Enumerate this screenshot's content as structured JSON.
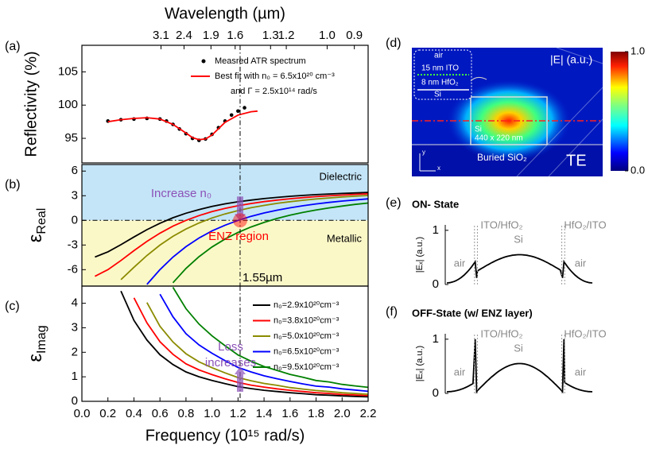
{
  "chart_data": [
    {
      "type": "line",
      "label": "(a)",
      "ylabel": "Reflectivity (%)",
      "x2label": "Wavelength (µm)",
      "xlim": [
        0,
        2.2
      ],
      "ylim": [
        91.3,
        109
      ],
      "yticks": [
        95,
        100,
        105
      ],
      "x2ticks": [
        {
          "value": 0.608,
          "label": "3.1"
        },
        {
          "value": 0.785,
          "label": "2.4"
        },
        {
          "value": 0.992,
          "label": "1.9"
        },
        {
          "value": 1.178,
          "label": "1.6"
        },
        {
          "value": 1.45,
          "label": "1.3"
        },
        {
          "value": 1.571,
          "label": "1.2"
        },
        {
          "value": 1.885,
          "label": "1.0"
        },
        {
          "value": 2.094,
          "label": "0.9"
        }
      ],
      "series": [
        {
          "name": "Measred ATR spectrum",
          "color": "#000000",
          "marker": "dot",
          "x": [
            0.2,
            0.3,
            0.4,
            0.5,
            0.6,
            0.65,
            0.7,
            0.75,
            0.8,
            0.85,
            0.9,
            0.95,
            1.0,
            1.05,
            1.1,
            1.15,
            1.2,
            1.25
          ],
          "values": [
            97.6,
            97.8,
            97.9,
            98.0,
            97.9,
            97.6,
            97.1,
            96.4,
            95.7,
            95.0,
            94.7,
            94.9,
            95.6,
            96.6,
            97.6,
            98.5,
            99.1,
            99.6
          ]
        },
        {
          "name": "Best fit with n₀ = 6.5x10²⁰ cm⁻³",
          "color": "#ff0000",
          "x": [
            0.2,
            0.3,
            0.4,
            0.5,
            0.6,
            0.7,
            0.8,
            0.85,
            0.9,
            0.95,
            1.0,
            1.1,
            1.2,
            1.3,
            1.35
          ],
          "values": [
            97.5,
            97.8,
            98.0,
            98.1,
            97.9,
            97.1,
            95.8,
            95.1,
            94.8,
            94.9,
            95.5,
            97.4,
            98.5,
            99.0,
            99.1
          ]
        }
      ],
      "legend_note": "and Γ = 2.5x10¹⁴ rad/s"
    },
    {
      "type": "line",
      "label": "(b)",
      "ylabel": "ε",
      "ylabel_sub": "Real",
      "xlim": [
        0,
        2.2
      ],
      "ylim": [
        -8,
        6.8
      ],
      "yticks": [
        -6,
        -3,
        0,
        3,
        6
      ],
      "hline": 0,
      "regions": [
        {
          "label": "Dielectric",
          "color": "#c4e5f7"
        },
        {
          "label": "Metallic",
          "color": "#fbf8c8"
        }
      ],
      "annotations": [
        {
          "text": "Increase n₀",
          "color": "#8c52b8"
        },
        {
          "text": "ENZ region",
          "color": "#ff0000"
        }
      ],
      "x": [
        0.1,
        0.2,
        0.3,
        0.4,
        0.5,
        0.6,
        0.7,
        0.8,
        0.9,
        1.0,
        1.1,
        1.2,
        1.3,
        1.4,
        1.5,
        1.6,
        1.7,
        1.8,
        1.9,
        2.0,
        2.1,
        2.2
      ],
      "series": [
        {
          "color": "#000000",
          "values": [
            -4.46,
            -3.83,
            -2.96,
            -2.02,
            -1.13,
            -0.35,
            0.32,
            0.87,
            1.32,
            1.7,
            2.01,
            2.26,
            2.47,
            2.65,
            2.8,
            2.93,
            3.04,
            3.13,
            3.21,
            3.28,
            3.34,
            3.4
          ]
        },
        {
          "color": "#ff0000",
          "values": [
            -6.81,
            -6.0,
            -4.89,
            -3.69,
            -2.56,
            -1.56,
            -0.71,
            0,
            0.58,
            1.06,
            1.45,
            1.78,
            2.05,
            2.28,
            2.47,
            2.63,
            2.77,
            2.89,
            2.99,
            3.08,
            3.16,
            3.23
          ]
        },
        {
          "color": "#8b8b00",
          "values": [
            null,
            null,
            -7.22,
            -5.71,
            -4.28,
            -3.01,
            -1.94,
            -1.05,
            -0.32,
            0.29,
            0.78,
            1.19,
            1.54,
            1.82,
            2.07,
            2.27,
            2.45,
            2.6,
            2.73,
            2.84,
            2.94,
            3.03
          ]
        },
        {
          "color": "#0000ff",
          "values": [
            null,
            null,
            null,
            null,
            -7.8,
            -6.0,
            -4.47,
            -3.2,
            -2.15,
            -1.29,
            -0.59,
            0,
            0.49,
            0.9,
            1.24,
            1.53,
            1.78,
            2.0,
            2.19,
            2.35,
            2.49,
            2.62
          ]
        },
        {
          "color": "#008000",
          "values": [
            null,
            null,
            null,
            null,
            null,
            null,
            -7.59,
            -5.85,
            -4.42,
            -3.24,
            -2.27,
            -1.47,
            -0.8,
            -0.25,
            0.23,
            0.63,
            0.97,
            1.26,
            1.52,
            1.74,
            1.94,
            2.11
          ]
        }
      ]
    },
    {
      "type": "line",
      "label": "(c)",
      "ylabel": "ε",
      "ylabel_sub": "Imag",
      "xlabel": "Frequency (10¹⁵ rad/s)",
      "xlim": [
        0,
        2.2
      ],
      "ylim": [
        0,
        4.7
      ],
      "yticks": [
        0,
        1,
        2,
        3,
        4
      ],
      "xticks": [
        {
          "value": 0,
          "label": "0.0"
        },
        0.2,
        0.4,
        0.6,
        0.8,
        {
          "value": 1,
          "label": "1.0"
        },
        1.2,
        1.4,
        1.6,
        1.8,
        {
          "value": 2,
          "label": "2.0"
        },
        2.2
      ],
      "annotations": [
        {
          "text": "Loss",
          "color": "#8c52b8"
        },
        {
          "text": "increases",
          "color": "#8c52b8"
        }
      ],
      "x": [
        0.1,
        0.2,
        0.3,
        0.4,
        0.5,
        0.6,
        0.7,
        0.8,
        0.9,
        1.0,
        1.1,
        1.2,
        1.3,
        1.4,
        1.5,
        1.6,
        1.7,
        1.8,
        1.9,
        2.0,
        2.1,
        2.2
      ],
      "series": [
        {
          "name": "n₀=2.9x10²⁰cm⁻³",
          "color": "#000000",
          "values": [
            null,
            null,
            4.5,
            3.3,
            2.5,
            1.9,
            1.5,
            1.2,
            1.0,
            0.85,
            0.72,
            0.6,
            0.52,
            0.45,
            0.4,
            0.35,
            0.31,
            0.27,
            0.25,
            0.22,
            0.2,
            0.18
          ]
        },
        {
          "name": "n₀=3.8x10²⁰cm⁻³",
          "color": "#ff0000",
          "values": [
            null,
            null,
            null,
            4.22,
            3.2,
            2.43,
            1.92,
            1.53,
            1.28,
            1.09,
            0.92,
            0.77,
            0.66,
            0.58,
            0.51,
            0.45,
            0.4,
            0.35,
            0.32,
            0.28,
            0.26,
            0.23
          ]
        },
        {
          "name": "n₀=5.0x10²⁰cm⁻³",
          "color": "#8b8b00",
          "values": [
            null,
            null,
            null,
            null,
            4.03,
            3.06,
            2.42,
            1.94,
            1.61,
            1.37,
            1.16,
            0.97,
            0.84,
            0.73,
            0.65,
            0.56,
            0.5,
            0.44,
            0.4,
            0.35,
            0.32,
            0.29
          ]
        },
        {
          "name": "n₀=6.5x10²⁰cm⁻³",
          "color": "#0000ff",
          "values": [
            null,
            null,
            null,
            null,
            null,
            4.37,
            3.45,
            2.76,
            2.3,
            1.96,
            1.66,
            1.38,
            1.2,
            1.04,
            0.92,
            0.81,
            0.71,
            0.62,
            0.58,
            0.51,
            0.46,
            0.41
          ]
        },
        {
          "name": "n₀=9.5x10²⁰cm⁻³",
          "color": "#008000",
          "values": [
            null,
            null,
            null,
            null,
            null,
            null,
            4.65,
            3.78,
            3.15,
            2.67,
            2.27,
            1.89,
            1.64,
            1.42,
            1.26,
            1.1,
            0.98,
            0.85,
            0.79,
            0.69,
            0.63,
            0.57
          ]
        }
      ]
    }
  ],
  "reference_line": {
    "x": 1.216,
    "label": "1.55µm"
  },
  "field_map": {
    "label": "(d)",
    "title": "|E| (a.u.)",
    "inset": [
      "air",
      "15 nm ITO",
      "8 nm HfO₂",
      "Si"
    ],
    "core": [
      "Si",
      "440 x 220 nm"
    ],
    "substrate": "Buried SiO₂",
    "mode": "TE",
    "axes": [
      "y",
      "x"
    ],
    "colorbar": {
      "lim": [
        0,
        1
      ],
      "ticks": [
        {
          "value": 1,
          "label": "1.0"
        },
        {
          "value": 0,
          "label": "0.0"
        }
      ]
    }
  },
  "profiles": [
    {
      "label": "(e)",
      "title": "ON- State",
      "ylabel": "|Eₓ| (a.u.)",
      "interfaces": [
        "ITO/HfO₂",
        "HfO₂/ITO"
      ],
      "regions": [
        "air",
        "Si",
        "air"
      ],
      "ylim": [
        0,
        1.1
      ],
      "yticks": [
        0,
        1
      ]
    },
    {
      "label": "(f)",
      "title": "OFF-State (w/ ENZ layer)",
      "ylabel": "|Eₓ| (a.u.)",
      "interfaces": [
        "ITO/HfO₂",
        "HfO₂/ITO"
      ],
      "regions": [
        "air",
        "Si",
        "air"
      ],
      "ylim": [
        0,
        1.1
      ],
      "yticks": [
        0,
        1
      ]
    }
  ]
}
